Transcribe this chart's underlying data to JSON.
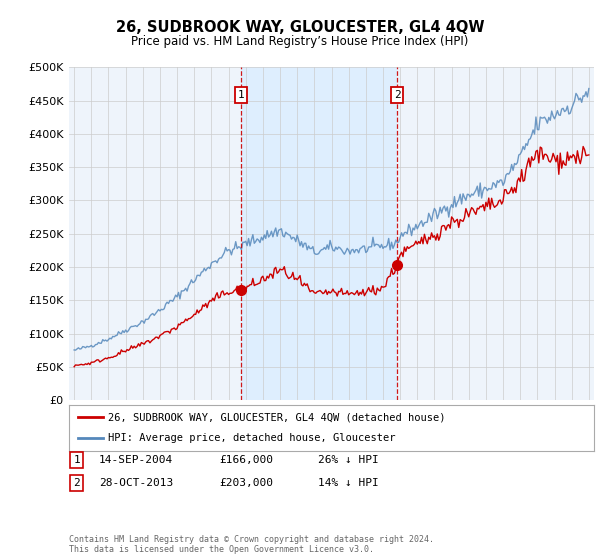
{
  "title": "26, SUDBROOK WAY, GLOUCESTER, GL4 4QW",
  "subtitle": "Price paid vs. HM Land Registry’s House Price Index (HPI)",
  "legend_line1": "26, SUDBROOK WAY, GLOUCESTER, GL4 4QW (detached house)",
  "legend_line2": "HPI: Average price, detached house, Gloucester",
  "footer1": "Contains HM Land Registry data © Crown copyright and database right 2024.",
  "footer2": "This data is licensed under the Open Government Licence v3.0.",
  "sale1_label": "1",
  "sale1_date": "14-SEP-2004",
  "sale1_price": "£166,000",
  "sale1_hpi": "26% ↓ HPI",
  "sale2_label": "2",
  "sale2_date": "28-OCT-2013",
  "sale2_price": "£203,000",
  "sale2_hpi": "14% ↓ HPI",
  "red_color": "#cc0000",
  "blue_color": "#5588bb",
  "shade_color": "#ddeeff",
  "bg_color": "#eef4fb",
  "grid_color": "#cccccc",
  "ylim": [
    0,
    500000
  ],
  "yticks": [
    0,
    50000,
    100000,
    150000,
    200000,
    250000,
    300000,
    350000,
    400000,
    450000,
    500000
  ],
  "sale1_year": 2004.71,
  "sale2_year": 2013.83,
  "sale1_price_val": 166000,
  "sale2_price_val": 203000
}
